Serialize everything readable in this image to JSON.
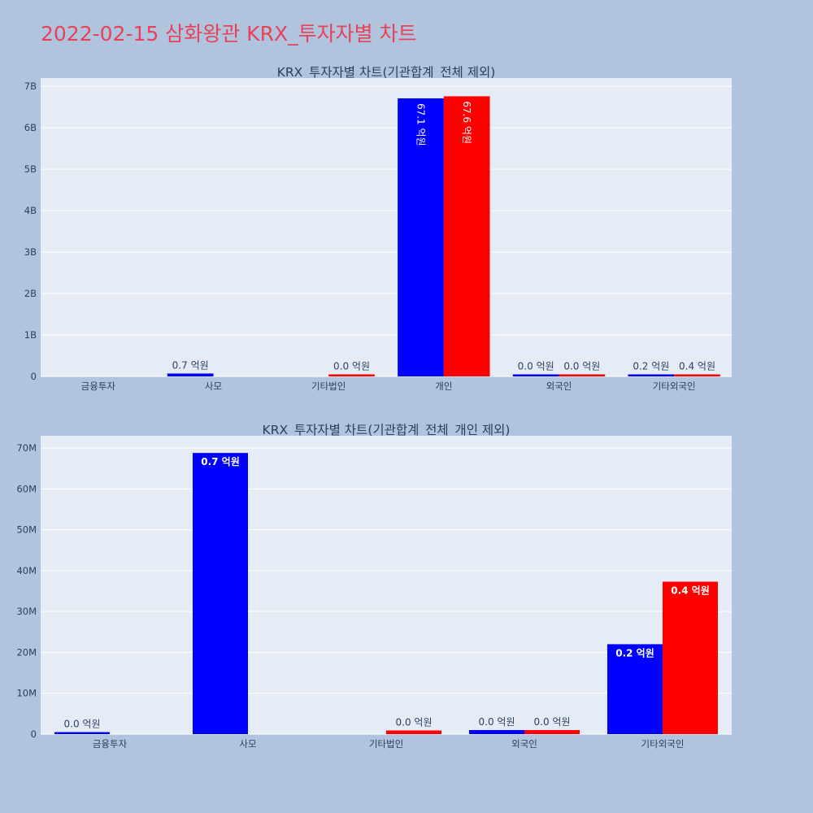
{
  "title": "2022-02-15 삼화왕관 KRX_투자자별 차트",
  "colors": {
    "series1": "#0000ff",
    "series2": "#ff0000",
    "plot_bg": "#e5ecf6",
    "page_bg": "#b0c4de",
    "title": "#e8425a"
  },
  "chart_data": [
    {
      "type": "bar",
      "title": "KRX_투자자별 차트(기관합계_전체 제외)",
      "categories": [
        "금융투자",
        "사모",
        "기타법인",
        "개인",
        "외국인",
        "기타외국인"
      ],
      "ylim": [
        0,
        7200000000
      ],
      "yticks": [
        0,
        1000000000,
        2000000000,
        3000000000,
        4000000000,
        5000000000,
        6000000000,
        7000000000
      ],
      "ytick_labels": [
        "0",
        "1B",
        "2B",
        "3B",
        "4B",
        "5B",
        "6B",
        "7B"
      ],
      "grid": true,
      "series": [
        {
          "values": [
            0,
            70000000,
            0,
            6710000000,
            1000000,
            22000000
          ],
          "labels": [
            "",
            "0.7 억원",
            "",
            "67.1 억원",
            "0.0 억원",
            "0.2 억원"
          ]
        },
        {
          "values": [
            0,
            0,
            1000000,
            6760000000,
            1000000,
            37000000
          ],
          "labels": [
            "",
            "",
            "0.0 억원",
            "67.6 억원",
            "0.0 억원",
            "0.4 억원"
          ]
        }
      ]
    },
    {
      "type": "bar",
      "title": "KRX_투자자별 차트(기관합계_전체_개인 제외)",
      "categories": [
        "금융투자",
        "사모",
        "기타법인",
        "외국인",
        "기타외국인"
      ],
      "ylim": [
        0,
        73000000
      ],
      "yticks": [
        0,
        10000000,
        20000000,
        30000000,
        40000000,
        50000000,
        60000000,
        70000000
      ],
      "ytick_labels": [
        "0",
        "10M",
        "20M",
        "30M",
        "40M",
        "50M",
        "60M",
        "70M"
      ],
      "grid": true,
      "series": [
        {
          "values": [
            200000,
            68800000,
            0,
            1000000,
            22000000
          ],
          "labels": [
            "0.0 억원",
            "0.7 억원",
            "",
            "0.0 억원",
            "0.2 억원"
          ]
        },
        {
          "values": [
            0,
            0,
            900000,
            1000000,
            37300000
          ],
          "labels": [
            "",
            "",
            "0.0 억원",
            "0.0 억원",
            "0.4 억원"
          ]
        }
      ]
    }
  ]
}
